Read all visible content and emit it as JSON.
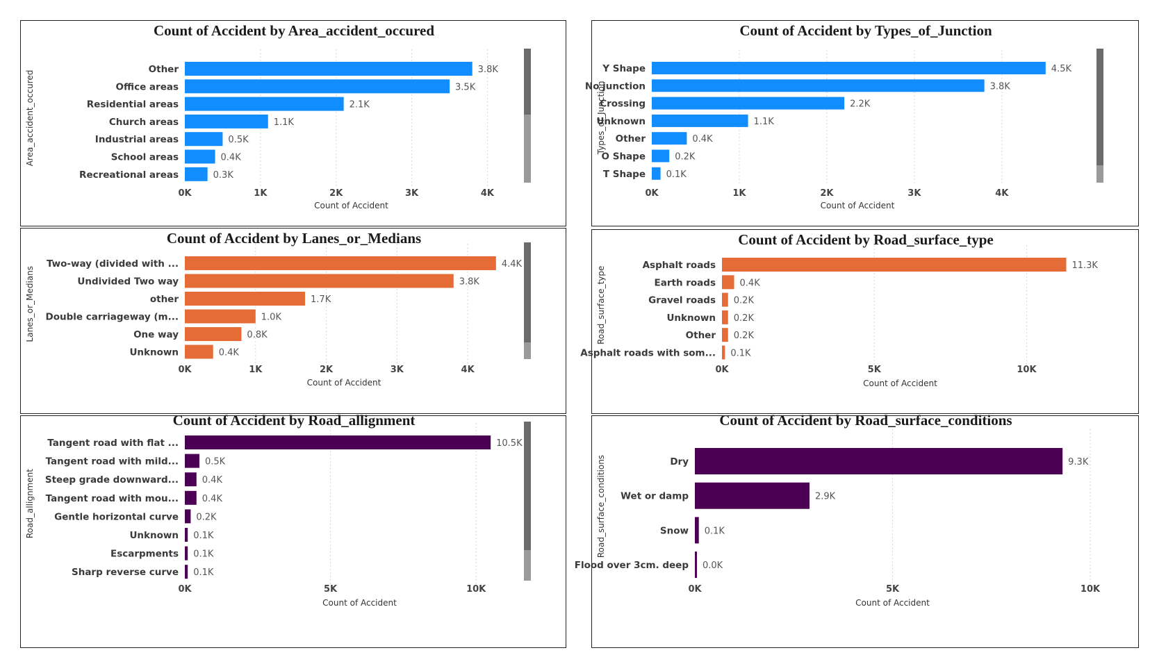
{
  "chart_data": [
    {
      "type": "bar",
      "orientation": "horizontal",
      "title": "Count of Accident by Area_accident_occured",
      "xlabel": "Count of Accident",
      "ylabel": "Area_accident_occured",
      "categories": [
        "Other",
        "Office areas",
        "Residential areas",
        "Church areas",
        "Industrial areas",
        "School areas",
        "Recreational areas"
      ],
      "values": [
        3.8,
        3.5,
        2.1,
        1.1,
        0.5,
        0.4,
        0.3
      ],
      "value_labels": [
        "3.8K",
        "3.5K",
        "2.1K",
        "1.1K",
        "0.5K",
        "0.4K",
        "0.3K"
      ],
      "xlim": [
        0,
        4.4
      ],
      "xticks": [
        0,
        1,
        2,
        3,
        4
      ],
      "xtick_labels": [
        "0K",
        "1K",
        "2K",
        "3K",
        "4K"
      ],
      "color": "#118DFF",
      "grid": "vertical dotted",
      "scrollbar": true
    },
    {
      "type": "bar",
      "orientation": "horizontal",
      "title": "Count of Accident by Types_of_Junction",
      "xlabel": "Count of Accident",
      "ylabel": "Types_of_Junction",
      "categories": [
        "Y Shape",
        "No junction",
        "Crossing",
        "Unknown",
        "Other",
        "O Shape",
        "T Shape"
      ],
      "values": [
        4.5,
        3.8,
        2.2,
        1.1,
        0.4,
        0.2,
        0.1
      ],
      "value_labels": [
        "4.5K",
        "3.8K",
        "2.2K",
        "1.1K",
        "0.4K",
        "0.2K",
        "0.1K"
      ],
      "xlim": [
        0,
        4.7
      ],
      "xticks": [
        0,
        1,
        2,
        3,
        4
      ],
      "xtick_labels": [
        "0K",
        "1K",
        "2K",
        "3K",
        "4K"
      ],
      "color": "#118DFF",
      "grid": "vertical dotted",
      "scrollbar": true
    },
    {
      "type": "bar",
      "orientation": "horizontal",
      "title": "Count of Accident by Lanes_or_Medians",
      "xlabel": "Count of Accident",
      "ylabel": "Lanes_or_Medians",
      "categories": [
        "Two-way (divided with ...",
        "Undivided Two way",
        "other",
        "Double carriageway (m...",
        "One way",
        "Unknown"
      ],
      "values": [
        4.4,
        3.8,
        1.7,
        1.0,
        0.8,
        0.4
      ],
      "value_labels": [
        "4.4K",
        "3.8K",
        "1.7K",
        "1.0K",
        "0.8K",
        "0.4K"
      ],
      "xlim": [
        0,
        4.5
      ],
      "xticks": [
        0,
        1,
        2,
        3,
        4
      ],
      "xtick_labels": [
        "0K",
        "1K",
        "2K",
        "3K",
        "4K"
      ],
      "color": "#E66C37",
      "grid": "vertical dotted",
      "scrollbar": true
    },
    {
      "type": "bar",
      "orientation": "horizontal",
      "title": "Count of Accident by Road_surface_type",
      "xlabel": "Count of Accident",
      "ylabel": "Road_surface_type",
      "categories": [
        "Asphalt roads",
        "Earth roads",
        "Gravel roads",
        "Unknown",
        "Other",
        "Asphalt roads with som..."
      ],
      "values": [
        11.3,
        0.4,
        0.2,
        0.2,
        0.2,
        0.1
      ],
      "value_labels": [
        "11.3K",
        "0.4K",
        "0.2K",
        "0.2K",
        "0.2K",
        "0.1K"
      ],
      "xlim": [
        0,
        11.7
      ],
      "xticks": [
        0,
        5,
        10
      ],
      "xtick_labels": [
        "0K",
        "5K",
        "10K"
      ],
      "color": "#E66C37",
      "grid": "vertical dotted",
      "scrollbar": false
    },
    {
      "type": "bar",
      "orientation": "horizontal",
      "title": "Count of Accident by Road_allignment",
      "xlabel": "Count of Accident",
      "ylabel": "Road_allignment",
      "categories": [
        "Tangent road with flat ...",
        "Tangent road with mild...",
        "Steep grade downward...",
        "Tangent road with mou...",
        "Gentle horizontal curve",
        "Unknown",
        "Escarpments",
        "Sharp reverse curve"
      ],
      "values": [
        10.5,
        0.5,
        0.4,
        0.4,
        0.2,
        0.1,
        0.1,
        0.1
      ],
      "value_labels": [
        "10.5K",
        "0.5K",
        "0.4K",
        "0.4K",
        "0.2K",
        "0.1K",
        "0.1K",
        "0.1K"
      ],
      "xlim": [
        0,
        12
      ],
      "xticks": [
        0,
        5,
        10
      ],
      "xtick_labels": [
        "0K",
        "5K",
        "10K"
      ],
      "color": "#4B0053",
      "grid": "vertical dotted",
      "scrollbar": true
    },
    {
      "type": "bar",
      "orientation": "horizontal",
      "title": "Count of Accident by Road_surface_conditions",
      "xlabel": "Count of Accident",
      "ylabel": "Road_surface_conditions",
      "categories": [
        "Dry",
        "Wet or damp",
        "Snow",
        "Flood over 3cm. deep"
      ],
      "values": [
        9.3,
        2.9,
        0.1,
        0.03
      ],
      "value_labels": [
        "9.3K",
        "2.9K",
        "0.1K",
        "0.0K"
      ],
      "xlim": [
        0,
        10
      ],
      "xticks": [
        0,
        5,
        10
      ],
      "xtick_labels": [
        "0K",
        "5K",
        "10K"
      ],
      "color": "#4B0053",
      "grid": "vertical dotted",
      "scrollbar": false
    }
  ]
}
